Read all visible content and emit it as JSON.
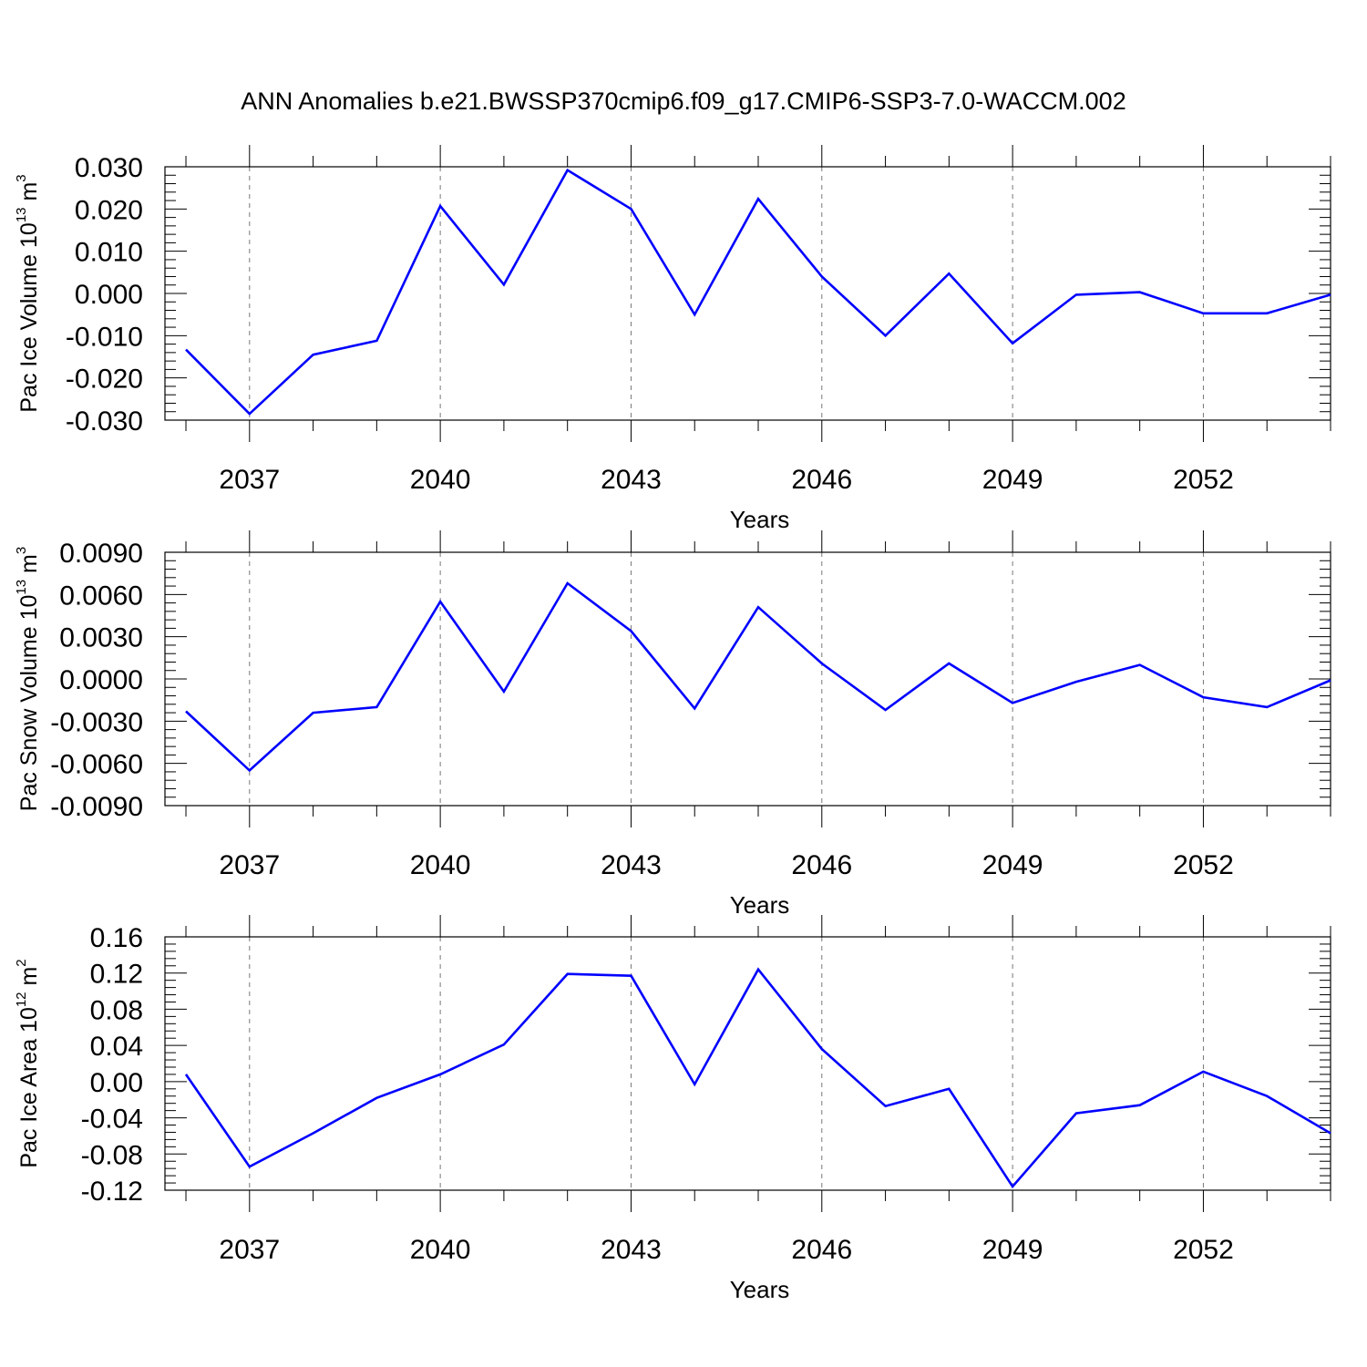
{
  "title": "ANN Anomalies b.e21.BWSSP370cmip6.f09_g17.CMIP6-SSP3-7.0-WACCM.002",
  "colors": {
    "line": "#0000ff",
    "axes": "#000000",
    "grid": "#777777"
  },
  "chart_data": [
    {
      "type": "line",
      "xlabel": "Years",
      "ylabel": {
        "base": "Pac Ice Volume 10",
        "exp": "13",
        "unit": " m",
        "unit_exp": "3"
      },
      "x": [
        2036,
        2037,
        2038,
        2039,
        2040,
        2041,
        2042,
        2043,
        2044,
        2045,
        2046,
        2047,
        2048,
        2049,
        2050,
        2051,
        2052,
        2053,
        2054
      ],
      "values": [
        -0.0133,
        -0.0285,
        -0.0145,
        -0.0112,
        0.0207,
        0.0021,
        0.0292,
        0.02,
        -0.005,
        0.0224,
        0.004,
        -0.01,
        0.0047,
        -0.0118,
        -0.0003,
        0.0003,
        -0.0047,
        -0.0047,
        -0.0003
      ],
      "xlim": [
        2035.67,
        2054.0
      ],
      "ylim": [
        -0.03,
        0.03
      ],
      "xticks": [
        "2037",
        "2040",
        "2043",
        "2046",
        "2049",
        "2052"
      ],
      "yticks": [
        "-0.030",
        "-0.020",
        "-0.010",
        "0.000",
        "0.010",
        "0.020",
        "0.030"
      ],
      "grid": "vertical dashed at major x ticks"
    },
    {
      "type": "line",
      "xlabel": "Years",
      "ylabel": {
        "base": "Pac Snow Volume 10",
        "exp": "13",
        "unit": " m",
        "unit_exp": "3"
      },
      "x": [
        2036,
        2037,
        2038,
        2039,
        2040,
        2041,
        2042,
        2043,
        2044,
        2045,
        2046,
        2047,
        2048,
        2049,
        2050,
        2051,
        2052,
        2053,
        2054
      ],
      "values": [
        -0.0023,
        -0.0065,
        -0.0024,
        -0.002,
        0.0055,
        -0.0009,
        0.0068,
        0.0034,
        -0.0021,
        0.0051,
        0.0011,
        -0.0022,
        0.0011,
        -0.0017,
        -0.0002,
        0.001,
        -0.0013,
        -0.002,
        -0.0001
      ],
      "xlim": [
        2035.67,
        2054.0
      ],
      "ylim": [
        -0.009,
        0.009
      ],
      "xticks": [
        "2037",
        "2040",
        "2043",
        "2046",
        "2049",
        "2052"
      ],
      "yticks": [
        "-0.0090",
        "-0.0060",
        "-0.0030",
        "0.0000",
        "0.0030",
        "0.0060",
        "0.0090"
      ],
      "grid": "vertical dashed at major x ticks"
    },
    {
      "type": "line",
      "xlabel": "Years",
      "ylabel": {
        "base": "Pac Ice Area 10",
        "exp": "12",
        "unit": " m",
        "unit_exp": "2"
      },
      "x": [
        2036,
        2037,
        2038,
        2039,
        2040,
        2041,
        2042,
        2043,
        2044,
        2045,
        2046,
        2047,
        2048,
        2049,
        2050,
        2051,
        2052,
        2053,
        2054
      ],
      "values": [
        0.008,
        -0.094,
        -0.057,
        -0.018,
        0.008,
        0.041,
        0.119,
        0.117,
        -0.003,
        0.124,
        0.036,
        -0.027,
        -0.008,
        -0.116,
        -0.035,
        -0.026,
        0.011,
        -0.016,
        -0.057
      ],
      "xlim": [
        2035.67,
        2054.0
      ],
      "ylim": [
        -0.12,
        0.16
      ],
      "xticks": [
        "2037",
        "2040",
        "2043",
        "2046",
        "2049",
        "2052"
      ],
      "yticks": [
        "-0.12",
        "-0.08",
        "-0.04",
        "0.00",
        "0.04",
        "0.08",
        "0.12",
        "0.16"
      ],
      "grid": "vertical dashed at major x ticks"
    }
  ]
}
